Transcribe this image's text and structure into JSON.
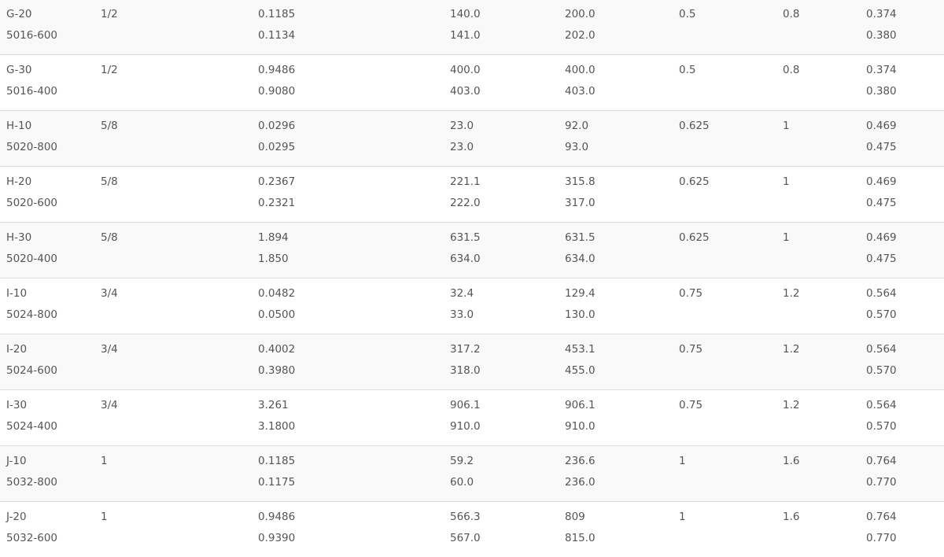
{
  "rows": [
    {
      "part": [
        "G-20",
        "5016-600"
      ],
      "size": [
        "1/2"
      ],
      "c3": [
        "0.1185",
        "0.1134"
      ],
      "c4": [
        "140.0",
        "141.0"
      ],
      "c5": [
        "200.0",
        "202.0"
      ],
      "c6": [
        "0.5"
      ],
      "c7": [
        "0.8"
      ],
      "c8": [
        "0.374",
        "0.380"
      ]
    },
    {
      "part": [
        "G-30",
        "5016-400"
      ],
      "size": [
        "1/2"
      ],
      "c3": [
        "0.9486",
        "0.9080"
      ],
      "c4": [
        "400.0",
        "403.0"
      ],
      "c5": [
        "400.0",
        "403.0"
      ],
      "c6": [
        "0.5"
      ],
      "c7": [
        "0.8"
      ],
      "c8": [
        "0.374",
        "0.380"
      ]
    },
    {
      "part": [
        "H-10",
        "5020-800"
      ],
      "size": [
        "5/8"
      ],
      "c3": [
        "0.0296",
        "0.0295"
      ],
      "c4": [
        "23.0",
        "23.0"
      ],
      "c5": [
        "92.0",
        "93.0"
      ],
      "c6": [
        "0.625"
      ],
      "c7": [
        "1"
      ],
      "c8": [
        "0.469",
        "0.475"
      ]
    },
    {
      "part": [
        "H-20",
        "5020-600"
      ],
      "size": [
        "5/8"
      ],
      "c3": [
        "0.2367",
        "0.2321"
      ],
      "c4": [
        "221.1",
        "222.0"
      ],
      "c5": [
        "315.8",
        "317.0"
      ],
      "c6": [
        "0.625"
      ],
      "c7": [
        "1"
      ],
      "c8": [
        "0.469",
        "0.475"
      ]
    },
    {
      "part": [
        "H-30",
        "5020-400"
      ],
      "size": [
        "5/8"
      ],
      "c3": [
        "1.894",
        "1.850"
      ],
      "c4": [
        "631.5",
        "634.0"
      ],
      "c5": [
        "631.5",
        "634.0"
      ],
      "c6": [
        "0.625"
      ],
      "c7": [
        "1"
      ],
      "c8": [
        "0.469",
        "0.475"
      ]
    },
    {
      "part": [
        "I-10",
        "5024-800"
      ],
      "size": [
        "3/4"
      ],
      "c3": [
        "0.0482",
        "0.0500"
      ],
      "c4": [
        "32.4",
        "33.0"
      ],
      "c5": [
        "129.4",
        "130.0"
      ],
      "c6": [
        "0.75"
      ],
      "c7": [
        "1.2"
      ],
      "c8": [
        "0.564",
        "0.570"
      ]
    },
    {
      "part": [
        "I-20",
        "5024-600"
      ],
      "size": [
        "3/4"
      ],
      "c3": [
        "0.4002",
        "0.3980"
      ],
      "c4": [
        "317.2",
        "318.0"
      ],
      "c5": [
        "453.1",
        "455.0"
      ],
      "c6": [
        "0.75"
      ],
      "c7": [
        "1.2"
      ],
      "c8": [
        "0.564",
        "0.570"
      ]
    },
    {
      "part": [
        "I-30",
        "5024-400"
      ],
      "size": [
        "3/4"
      ],
      "c3": [
        "3.261",
        "3.1800"
      ],
      "c4": [
        "906.1",
        "910.0"
      ],
      "c5": [
        "906.1",
        "910.0"
      ],
      "c6": [
        "0.75"
      ],
      "c7": [
        "1.2"
      ],
      "c8": [
        "0.564",
        "0.570"
      ]
    },
    {
      "part": [
        "J-10",
        "5032-800"
      ],
      "size": [
        "1"
      ],
      "c3": [
        "0.1185",
        "0.1175"
      ],
      "c4": [
        "59.2",
        "60.0"
      ],
      "c5": [
        "236.6",
        "236.0"
      ],
      "c6": [
        "1"
      ],
      "c7": [
        "1.6"
      ],
      "c8": [
        "0.764",
        "0.770"
      ]
    },
    {
      "part": [
        "J-20",
        "5032-600"
      ],
      "size": [
        "1"
      ],
      "c3": [
        "0.9486",
        "0.9390"
      ],
      "c4": [
        "566.3",
        "567.0"
      ],
      "c5": [
        "809",
        "815.0"
      ],
      "c6": [
        "1"
      ],
      "c7": [
        "1.6"
      ],
      "c8": [
        "0.764",
        "0.770"
      ]
    }
  ]
}
